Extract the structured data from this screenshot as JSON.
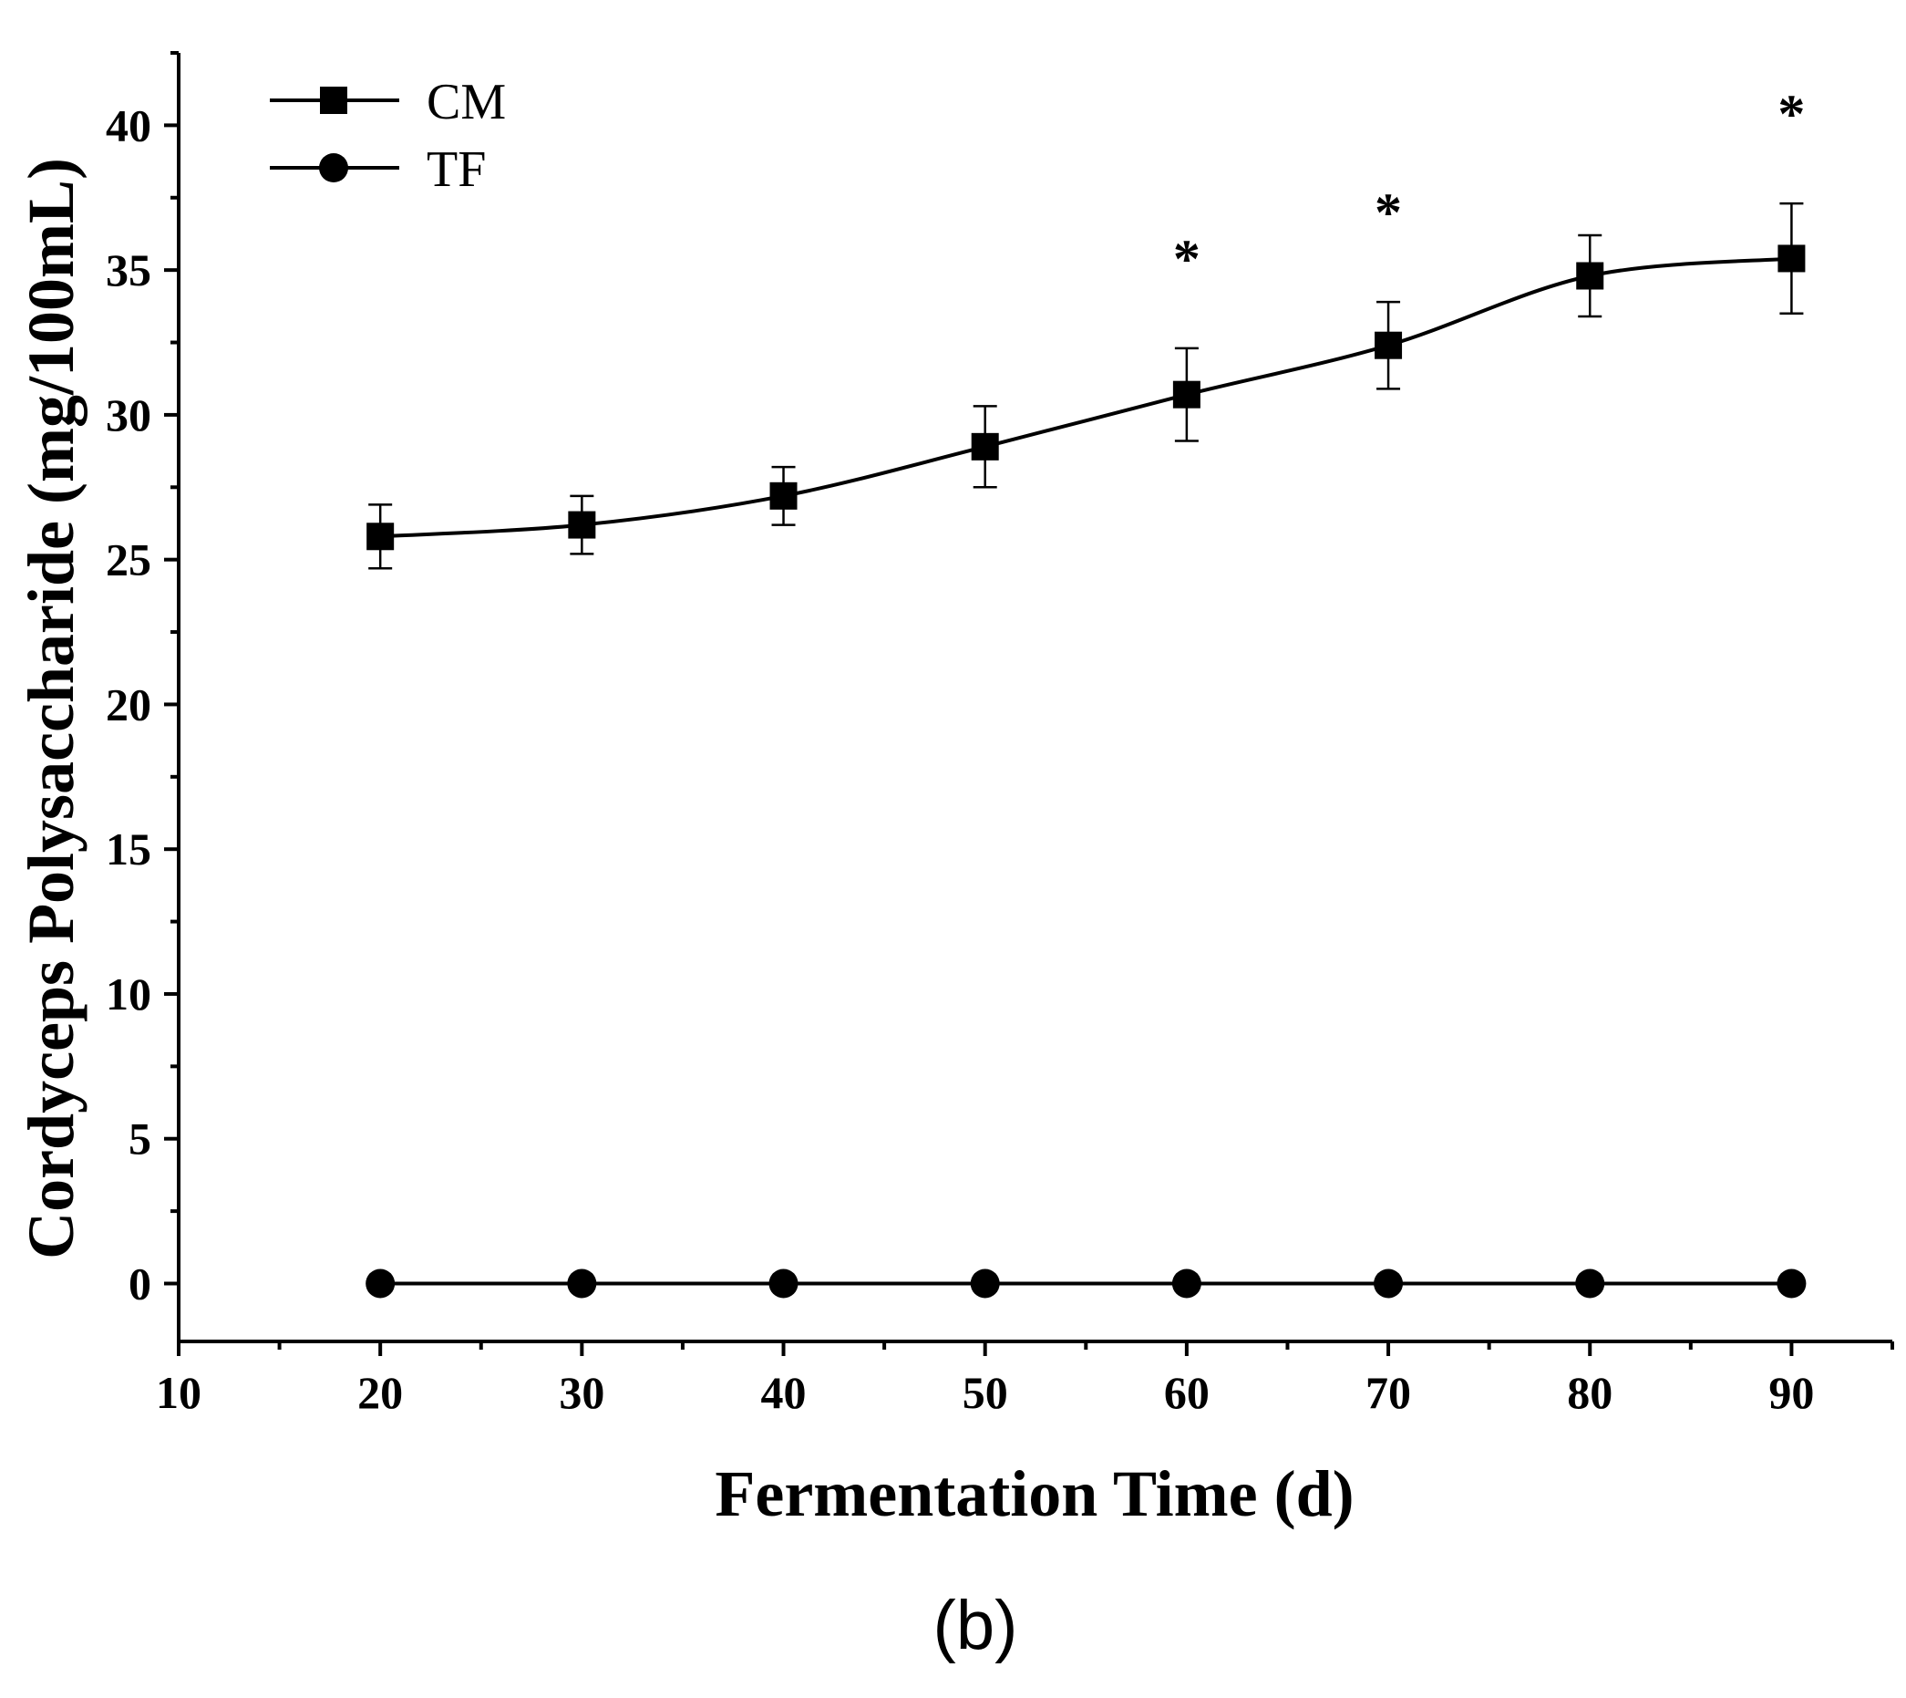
{
  "chart_data": {
    "type": "line",
    "title": "",
    "xlabel": "Fermentation Time (d)",
    "ylabel": "Cordyceps Polysaccharide (mg/100mL)",
    "xlim": [
      10,
      95
    ],
    "ylim": [
      -2,
      42.5
    ],
    "xticks": [
      10,
      20,
      30,
      40,
      50,
      60,
      70,
      80,
      90
    ],
    "yticks": [
      0,
      5,
      10,
      15,
      20,
      25,
      30,
      35,
      40
    ],
    "x": [
      20,
      30,
      40,
      50,
      60,
      70,
      80,
      90
    ],
    "series": [
      {
        "name": "CM",
        "marker": "square",
        "values": [
          25.8,
          26.2,
          27.2,
          28.9,
          30.7,
          32.4,
          34.8,
          35.4
        ],
        "errors": [
          1.1,
          1.0,
          1.0,
          1.4,
          1.6,
          1.5,
          1.4,
          1.9
        ]
      },
      {
        "name": "TF",
        "marker": "circle",
        "values": [
          0,
          0,
          0,
          0,
          0,
          0,
          0,
          0
        ],
        "errors": [
          0,
          0,
          0,
          0,
          0,
          0,
          0,
          0
        ]
      }
    ],
    "significance": [
      {
        "x": 60,
        "label": "*"
      },
      {
        "x": 70,
        "label": "*"
      },
      {
        "x": 90,
        "label": "*"
      }
    ],
    "legend": "top-left",
    "grid": false,
    "panel_label": "(b)",
    "color": "#000000"
  }
}
